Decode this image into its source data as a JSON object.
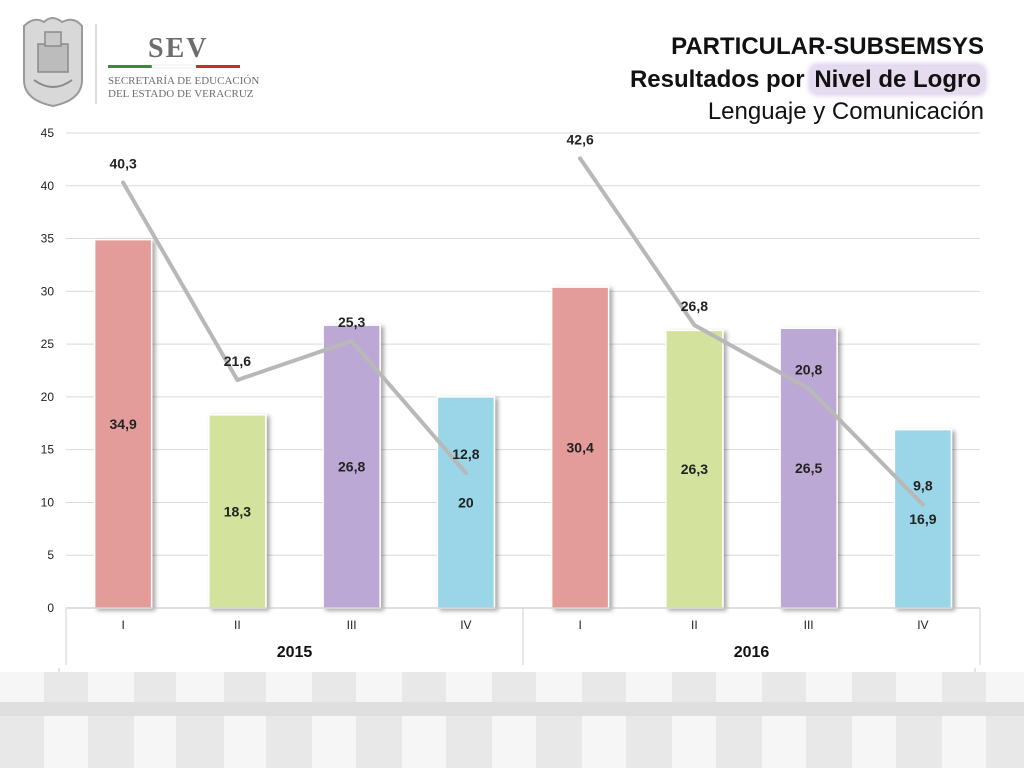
{
  "logo": {
    "org_short": "SEV",
    "org_line1": "SECRETARÍA DE EDUCACIÓN",
    "org_line2": "DEL ESTADO DE VERACRUZ"
  },
  "header": {
    "title_line1": "PARTICULAR-SUBSEMSYS",
    "title_line2_prefix": "Resultados por ",
    "title_line2_highlight": "Nivel de Logro",
    "title_line3": "Lenguaje y Comunicación"
  },
  "colors": {
    "level_I": "#e49c9a",
    "level_II": "#d3e29d",
    "level_III": "#bca8d4",
    "level_IV": "#9ad6e8",
    "line": "#b8b8b8",
    "grid": "#d9d9d9"
  },
  "chart_data": {
    "type": "bar",
    "title": "",
    "xlabel": "",
    "ylabel": "",
    "ylim": [
      0,
      45
    ],
    "yticks": [
      0,
      5,
      10,
      15,
      20,
      25,
      30,
      35,
      40,
      45
    ],
    "grid": true,
    "categories": [
      "I",
      "II",
      "III",
      "IV",
      "I",
      "II",
      "III",
      "IV"
    ],
    "groups": [
      {
        "label": "2015",
        "span": [
          0,
          3
        ]
      },
      {
        "label": "2016",
        "span": [
          4,
          7
        ]
      }
    ],
    "bar_values": [
      34.9,
      18.3,
      26.8,
      20,
      30.4,
      26.3,
      26.5,
      16.9
    ],
    "bar_labels": [
      "34,9",
      "18,3",
      "26,8",
      "20",
      "30,4",
      "26,3",
      "26,5",
      "16,9"
    ],
    "line_values": [
      40.3,
      21.6,
      25.3,
      12.8,
      42.6,
      26.8,
      20.8,
      9.8
    ],
    "line_labels": [
      "40,3",
      "21,6",
      "25,3",
      "12,8",
      "42,6",
      "26,8",
      "20,8",
      "9,8"
    ]
  }
}
